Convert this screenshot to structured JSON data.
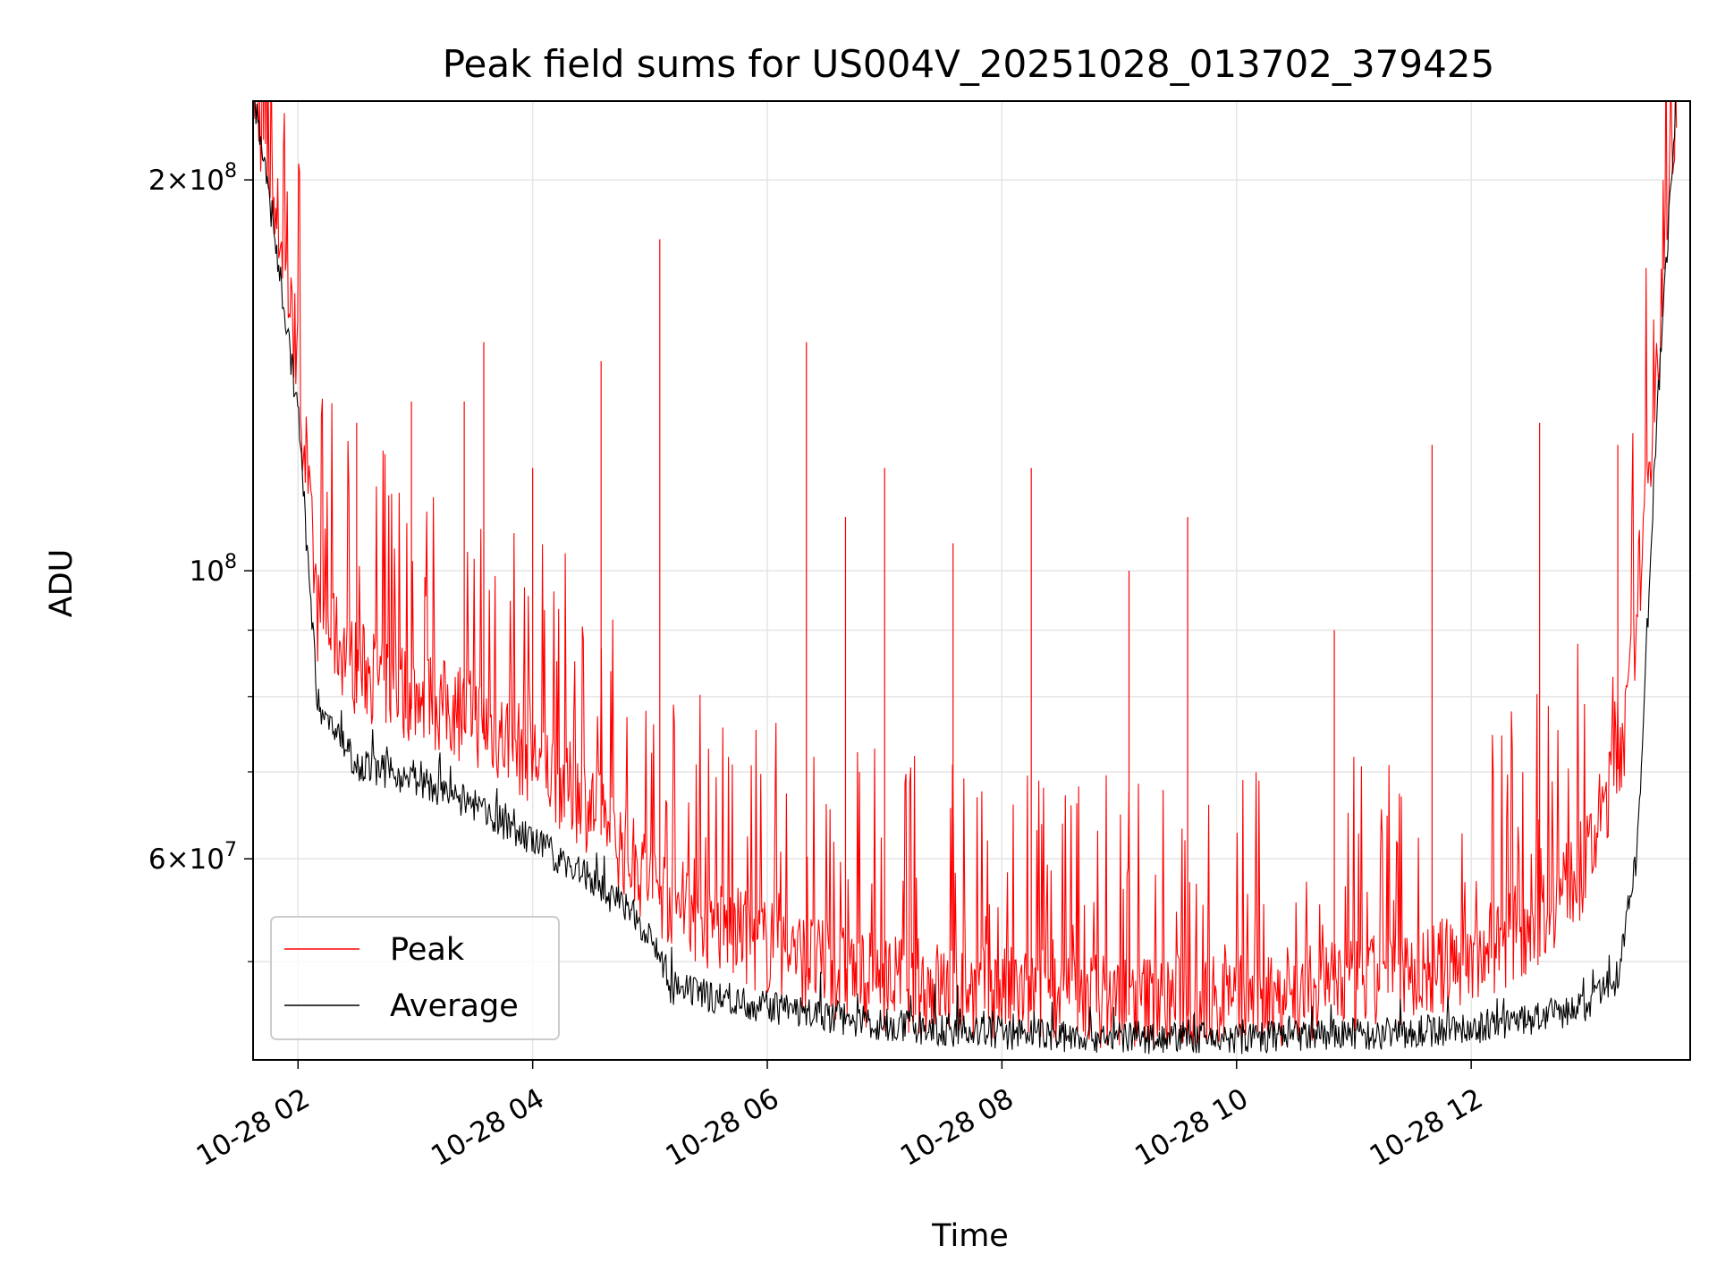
{
  "chart_data": {
    "type": "line",
    "title": "Peak field sums for US004V_20251028_013702_379425",
    "xlabel": "Time",
    "ylabel": "ADU",
    "yscale": "log",
    "grid": true,
    "legend_position": "lower-left",
    "xlim": [
      "2025-10-28T01:37",
      "2025-10-28T13:52"
    ],
    "ylim": [
      42000000,
      230000000
    ],
    "x_ticks": [
      "10-28 02",
      "10-28 04",
      "10-28 06",
      "10-28 08",
      "10-28 10",
      "10-28 12"
    ],
    "y_ticks_major": [
      {
        "value": 100000000,
        "label_base": "10",
        "label_exp": "8"
      }
    ],
    "y_ticks_minor_labeled": [
      {
        "value": 200000000,
        "label_mantissa": "2",
        "label_base": "10",
        "label_exp": "8"
      },
      {
        "value": 60000000,
        "label_mantissa": "6",
        "label_base": "10",
        "label_exp": "7"
      }
    ],
    "y_ticks_minor_unlabeled": [
      50000000,
      70000000,
      80000000,
      90000000
    ],
    "series": [
      {
        "name": "Peak",
        "color": "#ff0000",
        "envelope": [
          [
            "2025-10-28T01:37",
            230000000
          ],
          [
            "2025-10-28T01:50",
            180000000
          ],
          [
            "2025-10-28T02:00",
            140000000
          ],
          [
            "2025-10-28T02:10",
            90000000
          ],
          [
            "2025-10-28T02:30",
            82000000
          ],
          [
            "2025-10-28T03:00",
            78000000
          ],
          [
            "2025-10-28T03:30",
            75000000
          ],
          [
            "2025-10-28T04:00",
            70000000
          ],
          [
            "2025-10-28T04:30",
            64000000
          ],
          [
            "2025-10-28T05:00",
            56000000
          ],
          [
            "2025-10-28T05:30",
            52000000
          ],
          [
            "2025-10-28T06:00",
            50000000
          ],
          [
            "2025-10-28T06:30",
            48000000
          ],
          [
            "2025-10-28T07:00",
            47000000
          ],
          [
            "2025-10-28T07:30",
            46500000
          ],
          [
            "2025-10-28T08:00",
            46000000
          ],
          [
            "2025-10-28T08:30",
            45800000
          ],
          [
            "2025-10-28T09:00",
            45500000
          ],
          [
            "2025-10-28T09:30",
            45400000
          ],
          [
            "2025-10-28T10:00",
            45500000
          ],
          [
            "2025-10-28T10:30",
            45800000
          ],
          [
            "2025-10-28T11:00",
            46500000
          ],
          [
            "2025-10-28T11:30",
            47500000
          ],
          [
            "2025-10-28T12:00",
            49000000
          ],
          [
            "2025-10-28T12:30",
            52000000
          ],
          [
            "2025-10-28T13:00",
            58000000
          ],
          [
            "2025-10-28T13:20",
            75000000
          ],
          [
            "2025-10-28T13:35",
            140000000
          ],
          [
            "2025-10-28T13:45",
            230000000
          ]
        ],
        "spikes": [
          [
            "2025-10-28T02:30",
            130000000
          ],
          [
            "2025-10-28T02:58",
            135000000
          ],
          [
            "2025-10-28T03:25",
            135000000
          ],
          [
            "2025-10-28T03:35",
            150000000
          ],
          [
            "2025-10-28T04:00",
            120000000
          ],
          [
            "2025-10-28T04:35",
            145000000
          ],
          [
            "2025-10-28T05:05",
            180000000
          ],
          [
            "2025-10-28T06:20",
            150000000
          ],
          [
            "2025-10-28T06:40",
            110000000
          ],
          [
            "2025-10-28T07:00",
            120000000
          ],
          [
            "2025-10-28T07:35",
            105000000
          ],
          [
            "2025-10-28T08:15",
            120000000
          ],
          [
            "2025-10-28T09:05",
            100000000
          ],
          [
            "2025-10-28T09:35",
            110000000
          ],
          [
            "2025-10-28T10:50",
            90000000
          ],
          [
            "2025-10-28T11:40",
            125000000
          ],
          [
            "2025-10-28T12:35",
            130000000
          ],
          [
            "2025-10-28T13:15",
            125000000
          ]
        ]
      },
      {
        "name": "Average",
        "color": "#000000",
        "envelope": [
          [
            "2025-10-28T01:37",
            230000000
          ],
          [
            "2025-10-28T01:50",
            170000000
          ],
          [
            "2025-10-28T02:00",
            130000000
          ],
          [
            "2025-10-28T02:10",
            78000000
          ],
          [
            "2025-10-28T02:30",
            70000000
          ],
          [
            "2025-10-28T03:00",
            68000000
          ],
          [
            "2025-10-28T03:30",
            65000000
          ],
          [
            "2025-10-28T04:00",
            61000000
          ],
          [
            "2025-10-28T04:30",
            57000000
          ],
          [
            "2025-10-28T05:00",
            52000000
          ],
          [
            "2025-10-28T05:10",
            47000000
          ],
          [
            "2025-10-28T06:00",
            45500000
          ],
          [
            "2025-10-28T07:00",
            44000000
          ],
          [
            "2025-10-28T08:00",
            43400000
          ],
          [
            "2025-10-28T09:00",
            43100000
          ],
          [
            "2025-10-28T10:00",
            43000000
          ],
          [
            "2025-10-28T11:00",
            43300000
          ],
          [
            "2025-10-28T12:00",
            43800000
          ],
          [
            "2025-10-28T12:30",
            44500000
          ],
          [
            "2025-10-28T13:00",
            45500000
          ],
          [
            "2025-10-28T13:15",
            48000000
          ],
          [
            "2025-10-28T13:25",
            60000000
          ],
          [
            "2025-10-28T13:35",
            130000000
          ],
          [
            "2025-10-28T13:45",
            230000000
          ]
        ]
      }
    ]
  }
}
